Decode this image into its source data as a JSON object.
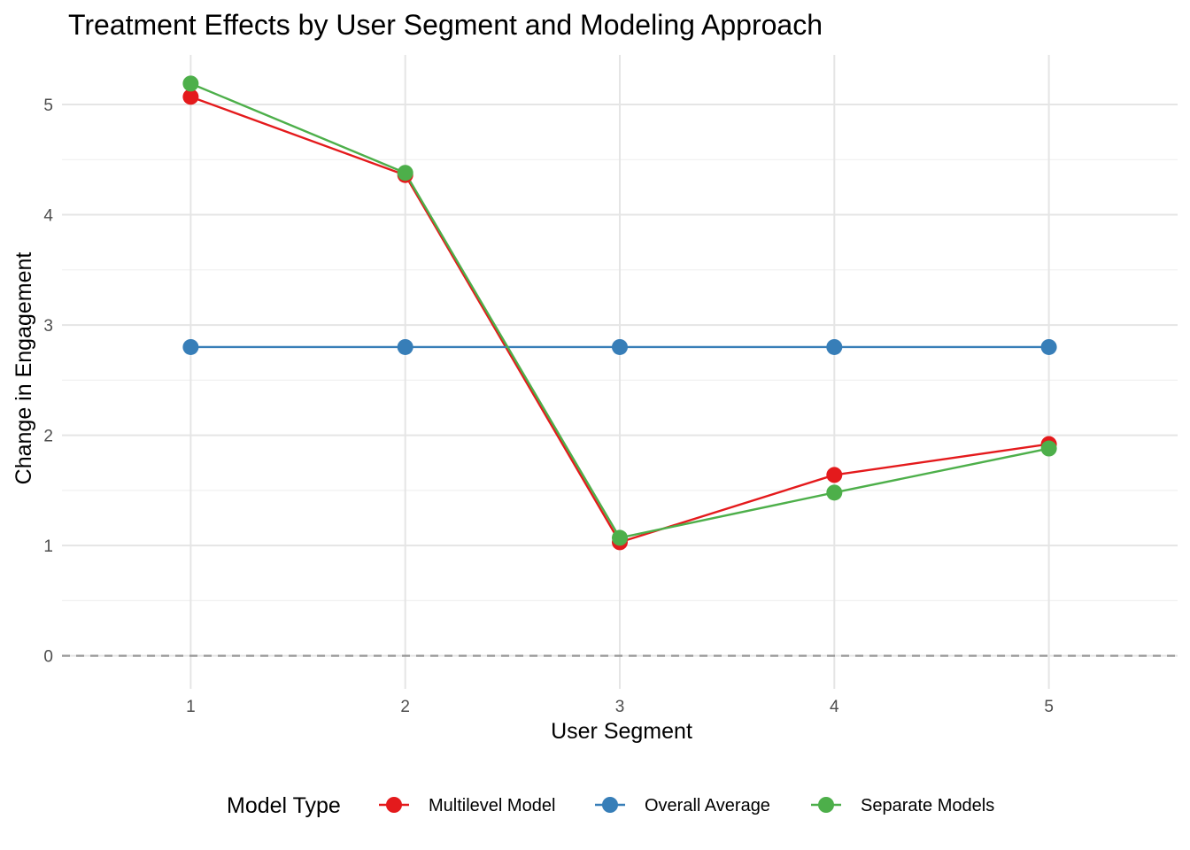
{
  "chart_data": {
    "type": "line",
    "title": "Treatment Effects by User Segment and Modeling Approach",
    "xlabel": "User Segment",
    "ylabel": "Change in Engagement",
    "x": [
      1,
      2,
      3,
      4,
      5
    ],
    "xticks": [
      "1",
      "2",
      "3",
      "4",
      "5"
    ],
    "yticks": [
      "0",
      "1",
      "2",
      "3",
      "4",
      "5"
    ],
    "xlim": [
      0.4,
      5.6
    ],
    "ylim": [
      -0.3,
      5.45
    ],
    "grid": true,
    "reference_line": {
      "y": 0,
      "style": "dashed",
      "color": "#999999"
    },
    "legend": {
      "title": "Model Type",
      "position": "bottom"
    },
    "series": [
      {
        "name": "Multilevel Model",
        "color": "#E41A1C",
        "values": [
          5.07,
          4.36,
          1.03,
          1.64,
          1.92
        ]
      },
      {
        "name": "Overall Average",
        "color": "#377EB8",
        "values": [
          2.8,
          2.8,
          2.8,
          2.8,
          2.8
        ]
      },
      {
        "name": "Separate Models",
        "color": "#4DAF4A",
        "values": [
          5.19,
          4.38,
          1.07,
          1.48,
          1.88
        ]
      }
    ]
  }
}
